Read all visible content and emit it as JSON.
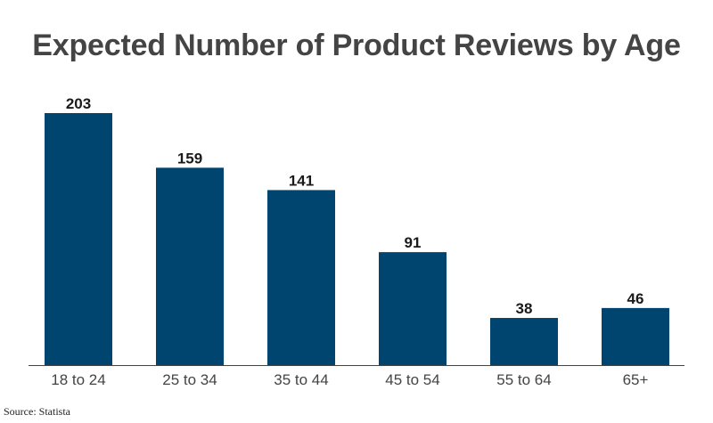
{
  "title": "Expected Number of Product Reviews by Age",
  "source": "Source: Statista",
  "colors": {
    "bar": "#004570",
    "title": "#444444",
    "baseline": "#444444"
  },
  "chart_data": {
    "type": "bar",
    "title": "Expected Number of Product Reviews by Age",
    "categories": [
      "18 to 24",
      "25 to 34",
      "35 to 44",
      "45 to 54",
      "55 to 64",
      "65+"
    ],
    "values": [
      203,
      159,
      141,
      91,
      38,
      46
    ],
    "xlabel": "",
    "ylabel": "",
    "ylim": [
      0,
      203
    ],
    "grid": false,
    "legend": "none"
  }
}
